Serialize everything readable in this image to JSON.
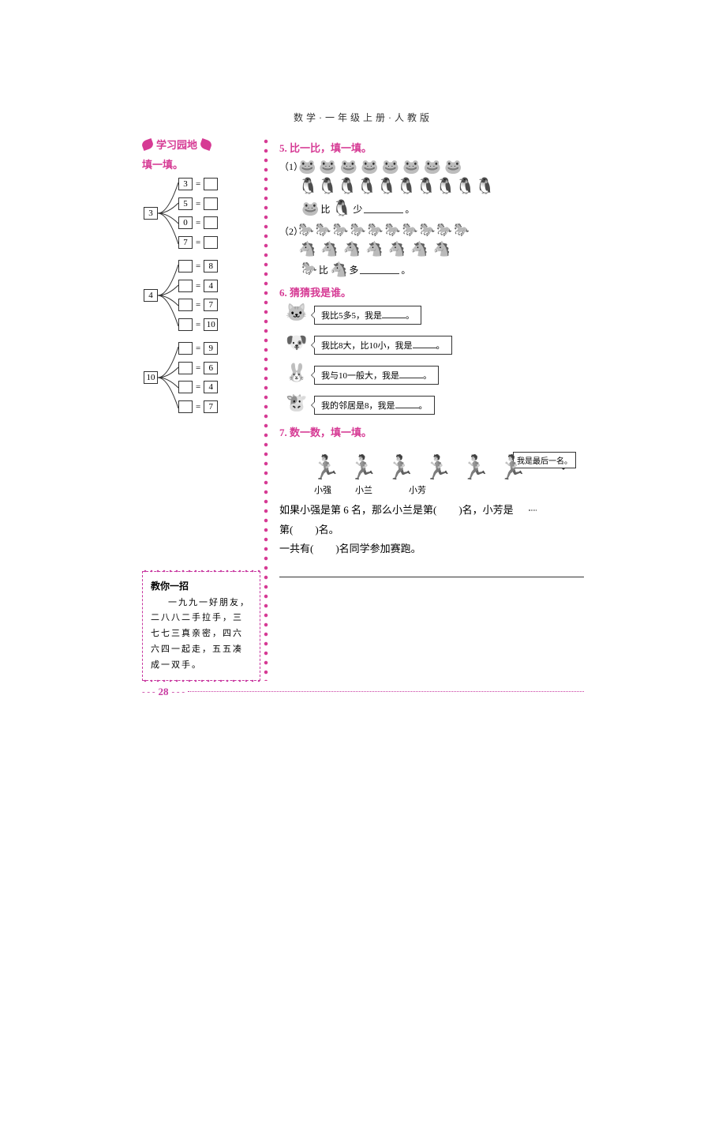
{
  "header": "数学·一年级上册·人教版",
  "accent_color": "#d63a94",
  "sidebar": {
    "badge_title": "学习园地",
    "fill_title": "填一填。",
    "trees": [
      {
        "root": "3",
        "rows": [
          {
            "left": "3",
            "right": ""
          },
          {
            "left": "5",
            "right": ""
          },
          {
            "left": "0",
            "right": ""
          },
          {
            "left": "7",
            "right": ""
          }
        ]
      },
      {
        "root": "4",
        "rows": [
          {
            "left": "",
            "right": "8"
          },
          {
            "left": "",
            "right": "4"
          },
          {
            "left": "",
            "right": "7"
          },
          {
            "left": "",
            "right": "10"
          }
        ]
      },
      {
        "root": "10",
        "rows": [
          {
            "left": "",
            "right": "9"
          },
          {
            "left": "",
            "right": "6"
          },
          {
            "left": "",
            "right": "4"
          },
          {
            "left": "",
            "right": "7"
          }
        ]
      }
    ],
    "tip": {
      "title": "教你一招",
      "body": "一九九一好朋友，二八八二手拉手，三七七三真亲密，四六六四一起走，五五凑成一双手。"
    }
  },
  "q5": {
    "title": "5. 比一比，填一填。",
    "sub1_label": "（1）",
    "sub2_label": "（2）",
    "frog_count": 8,
    "penguin_count": 10,
    "cmp1_a": "🐸",
    "cmp1_mid": "比",
    "cmp1_b": "🐧",
    "cmp1_word": "少",
    "horse_small_count": 10,
    "horse_big_count": 7,
    "cmp2_a": "🐎",
    "cmp2_mid": "比",
    "cmp2_b": "🐴",
    "cmp2_word": "多",
    "period": "。"
  },
  "q6": {
    "title": "6. 猜猜我是谁。",
    "rows": [
      {
        "avatar": "🐱",
        "text_pre": "我比5多5，我是",
        "text_post": "。"
      },
      {
        "avatar": "🐶",
        "text_pre": "我比8大，比10小，我是",
        "text_post": "。"
      },
      {
        "avatar": "🐰",
        "text_pre": "我与10一般大，我是",
        "text_post": "。"
      },
      {
        "avatar": "🐮",
        "text_pre": "我的邻居是8，我是",
        "text_post": "。"
      }
    ]
  },
  "q7": {
    "title": "7. 数一数，填一填。",
    "last_label": "我是最后一名。",
    "runner_count": 6,
    "names": [
      "小强",
      "小兰",
      "小芳"
    ],
    "line1_pre": "如果小强是第 6 名，那么小兰是第(",
    "line1_post": ")名，小芳是",
    "line2_pre": "第(",
    "line2_post": ")名。",
    "line3_pre": "一共有(",
    "line3_post": ")名同学参加赛跑。"
  },
  "page_number": "28"
}
